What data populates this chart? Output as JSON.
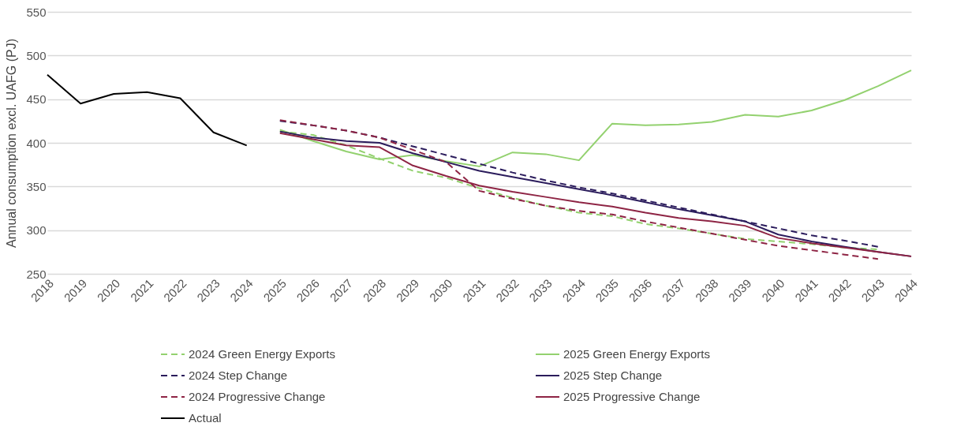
{
  "chart_data": {
    "type": "line",
    "ylabel": "Annual consumption excl. UAFG (PJ)",
    "categories": [
      "2018",
      "2019",
      "2020",
      "2021",
      "2022",
      "2023",
      "2024",
      "2025",
      "2026",
      "2027",
      "2028",
      "2029",
      "2030",
      "2031",
      "2032",
      "2033",
      "2034",
      "2035",
      "2036",
      "2037",
      "2038",
      "2039",
      "2040",
      "2041",
      "2042",
      "2043",
      "2044"
    ],
    "ylim": [
      250,
      550
    ],
    "yticks": [
      250,
      300,
      350,
      400,
      450,
      500,
      550
    ],
    "grid": "y",
    "legend": "bottom",
    "marker": "none",
    "series": [
      {
        "name": "2024 Green Energy Exports",
        "color": "#93d16f",
        "line_style": "dashed",
        "values": [
          null,
          null,
          null,
          null,
          null,
          null,
          null,
          413,
          409,
          397,
          382,
          368,
          360,
          348,
          337,
          328,
          320,
          316,
          307,
          302,
          296,
          290,
          287,
          284,
          280,
          278,
          null
        ]
      },
      {
        "name": "2025 Green Energy Exports",
        "color": "#93d16f",
        "line_style": "solid",
        "values": [
          null,
          null,
          null,
          null,
          null,
          null,
          null,
          415,
          402,
          390,
          381,
          386,
          379,
          373,
          389,
          387,
          380,
          422,
          420,
          421,
          424,
          432,
          430,
          437,
          449,
          465,
          483
        ]
      },
      {
        "name": "2024 Step Change",
        "color": "#2b1c5c",
        "line_style": "dashed",
        "values": [
          null,
          null,
          null,
          null,
          null,
          null,
          null,
          425,
          420,
          414,
          406,
          396,
          386,
          376,
          366,
          357,
          349,
          342,
          334,
          326,
          318,
          310,
          302,
          294,
          288,
          281,
          null
        ]
      },
      {
        "name": "2025 Step Change",
        "color": "#2b1c5c",
        "line_style": "solid",
        "values": [
          null,
          null,
          null,
          null,
          null,
          null,
          null,
          413,
          406,
          402,
          400,
          388,
          378,
          368,
          361,
          354,
          347,
          340,
          332,
          324,
          317,
          310,
          295,
          287,
          281,
          275,
          270
        ]
      },
      {
        "name": "2024 Progressive Change",
        "color": "#8e2444",
        "line_style": "dashed",
        "values": [
          null,
          null,
          null,
          null,
          null,
          null,
          null,
          426,
          420,
          414,
          406,
          392,
          378,
          345,
          336,
          328,
          322,
          318,
          310,
          303,
          296,
          289,
          282,
          277,
          272,
          267,
          null
        ]
      },
      {
        "name": "2025 Progressive Change",
        "color": "#8e2444",
        "line_style": "solid",
        "values": [
          null,
          null,
          null,
          null,
          null,
          null,
          null,
          411,
          404,
          397,
          395,
          374,
          362,
          351,
          344,
          338,
          332,
          327,
          320,
          314,
          310,
          305,
          291,
          285,
          280,
          275,
          270
        ]
      },
      {
        "name": "Actual",
        "color": "#000000",
        "line_style": "solid",
        "values": [
          478,
          445,
          456,
          458,
          451,
          412,
          397,
          null,
          null,
          null,
          null,
          null,
          null,
          null,
          null,
          null,
          null,
          null,
          null,
          null,
          null,
          null,
          null,
          null,
          null,
          null,
          null
        ]
      }
    ]
  }
}
